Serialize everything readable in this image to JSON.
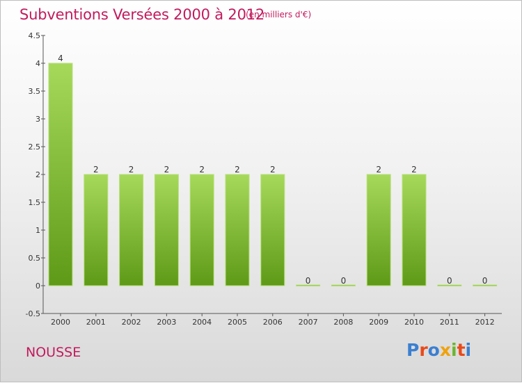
{
  "header": {
    "title": "Subventions Versées 2000 à 2012",
    "subtitle": "(en milliers d'€)"
  },
  "footer": {
    "commune": "NOUSSE",
    "logo_text": "Proxiti",
    "logo_colors": [
      "#3b7fd1",
      "#e84a1a",
      "#3b7fd1",
      "#f0a20b",
      "#6cb52d",
      "#e84a1a",
      "#3b7fd1"
    ]
  },
  "chart_data": {
    "type": "bar",
    "title": "Subventions Versées 2000 à 2012",
    "subtitle": "(en milliers d'€)",
    "xlabel": "",
    "ylabel": "",
    "categories": [
      "2000",
      "2001",
      "2002",
      "2003",
      "2004",
      "2005",
      "2006",
      "2007",
      "2008",
      "2009",
      "2010",
      "2011",
      "2012"
    ],
    "values": [
      4,
      2,
      2,
      2,
      2,
      2,
      2,
      0,
      0,
      2,
      2,
      0,
      0
    ],
    "data_labels": [
      "4",
      "2",
      "2",
      "2",
      "2",
      "2",
      "2",
      "0",
      "0",
      "2",
      "2",
      "0",
      "0"
    ],
    "ylim": [
      -0.5,
      4.5
    ],
    "yticks": [
      -0.5,
      0,
      0.5,
      1,
      1.5,
      2,
      2.5,
      3,
      3.5,
      4,
      4.5
    ],
    "ytick_labels": [
      "-0.5",
      "0",
      "0.5",
      "1",
      "1.5",
      "2",
      "2.5",
      "3",
      "3.5",
      "4",
      "4.5"
    ],
    "grid": false,
    "colors": {
      "bar_top": "#a6d95a",
      "bar_bottom": "#5e9a17",
      "axis": "#555555"
    }
  }
}
